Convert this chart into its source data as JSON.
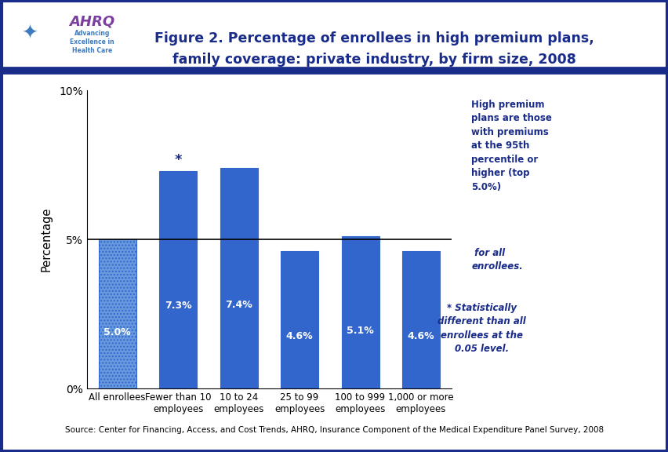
{
  "title_line1": "Figure 2. Percentage of enrollees in high premium plans,",
  "title_line2": "family coverage: private industry, by firm size, 2008",
  "categories": [
    "All enrollees",
    "Fewer than 10\nemployees",
    "10 to 24\nemployees",
    "25 to 99\nemployees",
    "100 to 999\nemployees",
    "1,000 or more\nemployees"
  ],
  "values": [
    5.0,
    7.3,
    7.4,
    4.6,
    5.1,
    4.6
  ],
  "bar_labels": [
    "5.0%",
    "7.3%",
    "7.4%",
    "4.6%",
    "5.1%",
    "4.6%"
  ],
  "statistically_different": [
    false,
    true,
    false,
    false,
    false,
    false
  ],
  "bar_color_solid": "#3366CC",
  "bar_color_dotted": "#6699DD",
  "ylabel": "Percentage",
  "ylim": [
    0,
    10
  ],
  "yticks": [
    0,
    5,
    10
  ],
  "ytick_labels": [
    "0%",
    "5%",
    "10%"
  ],
  "reference_line_y": 5.0,
  "source": "Source: Center for Financing, Access, and Cost Trends, AHRQ, Insurance Component of the Medical Expenditure Panel Survey, 2008",
  "outer_border_color": "#1A2C8A",
  "divider_color": "#1A2C8A",
  "plot_bg_color": "#FFFFFF",
  "fig_bg_color": "#FFFFFF",
  "title_color": "#1A2C8A",
  "note_color": "#1A2C8A",
  "logo_bg_color": "#3D7ABF",
  "logo_text_color": "#FFFFFF"
}
